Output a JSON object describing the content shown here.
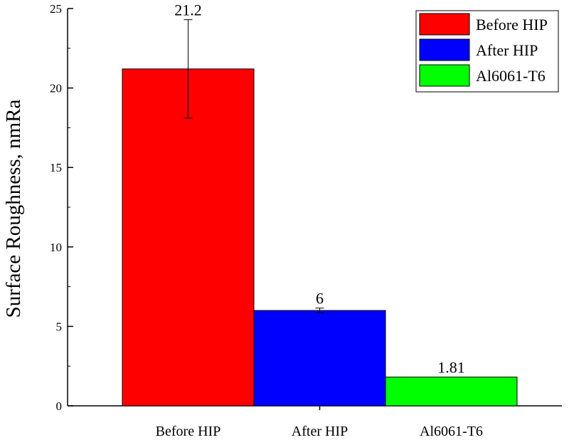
{
  "chart_data": {
    "type": "bar",
    "categories": [
      "Before HIP",
      "After HIP",
      "Al6061-T6"
    ],
    "values": [
      21.2,
      6,
      1.81
    ],
    "error": [
      3.1,
      0.15,
      null
    ],
    "data_labels": [
      "21.2",
      "6",
      "1.81"
    ],
    "colors": [
      "#ff0000",
      "#0000ff",
      "#00ff00"
    ],
    "title": "",
    "xlabel": "",
    "ylabel": "Surface Roughness, nmRa",
    "ylim": [
      0,
      25
    ],
    "yticks": [
      0,
      5,
      10,
      15,
      20,
      25
    ],
    "ytick_labels": [
      "0",
      "5",
      "10",
      "15",
      "20",
      "25"
    ],
    "legend": {
      "position": "top-right",
      "entries": [
        "Before HIP",
        "After HIP",
        "Al6061-T6"
      ]
    },
    "grid": false
  }
}
